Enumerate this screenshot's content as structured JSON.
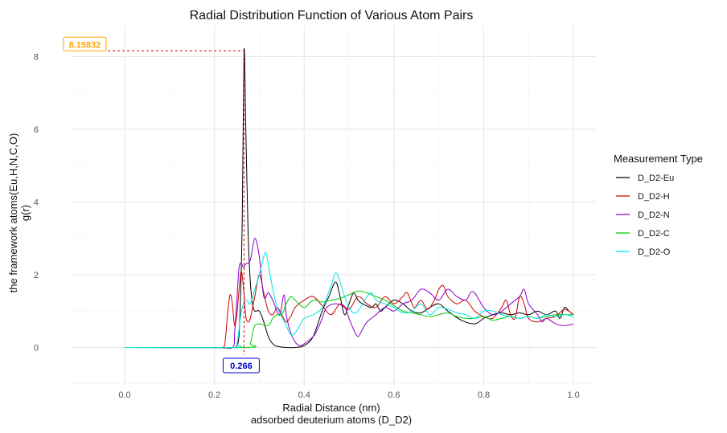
{
  "chart_data": {
    "type": "line",
    "title": "Radial Distribution Function of Various Atom Pairs",
    "xlabel_lines": [
      "Radial Distance (nm)",
      "adsorbed deuterium atoms (D_D2)"
    ],
    "ylabel_lines": [
      "the framework atoms(Eu,H,N,C,O)",
      "g(r)"
    ],
    "xlim": [
      -0.12,
      1.05
    ],
    "ylim": [
      -1.05,
      8.85
    ],
    "xticks": [
      0.0,
      0.2,
      0.4,
      0.6,
      0.8,
      1.0
    ],
    "xtick_labels": [
      "0.0",
      "0.2",
      "0.4",
      "0.6",
      "0.8",
      "1.0"
    ],
    "yticks": [
      0,
      2,
      4,
      6,
      8
    ],
    "ytick_labels": [
      "0",
      "2",
      "4",
      "6",
      "8"
    ],
    "grid": true,
    "legend": {
      "title": "Measurement Type",
      "position": "right"
    },
    "series": [
      {
        "name": "D_D2-Eu",
        "color": "#000000",
        "points": [
          [
            0.0,
            0
          ],
          [
            0.2,
            0
          ],
          [
            0.24,
            0
          ],
          [
            0.25,
            0.05
          ],
          [
            0.256,
            0.6
          ],
          [
            0.262,
            3.5
          ],
          [
            0.266,
            8.15832
          ],
          [
            0.27,
            6.0
          ],
          [
            0.275,
            3.2
          ],
          [
            0.28,
            1.8
          ],
          [
            0.285,
            1.2
          ],
          [
            0.29,
            1.0
          ],
          [
            0.3,
            1.0
          ],
          [
            0.31,
            0.7
          ],
          [
            0.32,
            0.3
          ],
          [
            0.33,
            0.1
          ],
          [
            0.34,
            0.03
          ],
          [
            0.36,
            0.0
          ],
          [
            0.38,
            0.0
          ],
          [
            0.4,
            0.05
          ],
          [
            0.42,
            0.3
          ],
          [
            0.44,
            1.0
          ],
          [
            0.455,
            1.4
          ],
          [
            0.47,
            1.8
          ],
          [
            0.48,
            1.4
          ],
          [
            0.49,
            0.9
          ],
          [
            0.5,
            1.2
          ],
          [
            0.51,
            1.5
          ],
          [
            0.52,
            1.3
          ],
          [
            0.53,
            1.2
          ],
          [
            0.55,
            1.1
          ],
          [
            0.56,
            1.2
          ],
          [
            0.57,
            1.0
          ],
          [
            0.58,
            1.1
          ],
          [
            0.6,
            1.3
          ],
          [
            0.62,
            1.2
          ],
          [
            0.64,
            1.0
          ],
          [
            0.66,
            0.95
          ],
          [
            0.68,
            1.1
          ],
          [
            0.7,
            1.2
          ],
          [
            0.72,
            1.0
          ],
          [
            0.75,
            0.75
          ],
          [
            0.78,
            0.65
          ],
          [
            0.8,
            0.8
          ],
          [
            0.82,
            0.9
          ],
          [
            0.84,
            0.95
          ],
          [
            0.86,
            0.9
          ],
          [
            0.88,
            0.95
          ],
          [
            0.9,
            0.9
          ],
          [
            0.92,
            1.0
          ],
          [
            0.94,
            0.9
          ],
          [
            0.96,
            1.0
          ],
          [
            0.97,
            0.8
          ],
          [
            0.98,
            1.1
          ],
          [
            0.99,
            1.0
          ],
          [
            1.0,
            0.9
          ]
        ]
      },
      {
        "name": "D_D2-H",
        "color": "#cc0000",
        "points": [
          [
            0.0,
            0
          ],
          [
            0.2,
            0
          ],
          [
            0.22,
            0
          ],
          [
            0.225,
            0.3
          ],
          [
            0.23,
            1.0
          ],
          [
            0.235,
            1.45
          ],
          [
            0.24,
            1.2
          ],
          [
            0.245,
            0.6
          ],
          [
            0.25,
            0.9
          ],
          [
            0.255,
            1.6
          ],
          [
            0.26,
            2.1
          ],
          [
            0.265,
            1.6
          ],
          [
            0.27,
            0.85
          ],
          [
            0.275,
            0.7
          ],
          [
            0.28,
            0.8
          ],
          [
            0.29,
            1.4
          ],
          [
            0.3,
            2.0
          ],
          [
            0.31,
            1.5
          ],
          [
            0.32,
            1.0
          ],
          [
            0.33,
            0.9
          ],
          [
            0.34,
            1.1
          ],
          [
            0.35,
            0.9
          ],
          [
            0.36,
            0.7
          ],
          [
            0.37,
            0.85
          ],
          [
            0.38,
            1.1
          ],
          [
            0.4,
            1.3
          ],
          [
            0.42,
            1.4
          ],
          [
            0.44,
            1.15
          ],
          [
            0.46,
            0.9
          ],
          [
            0.48,
            1.2
          ],
          [
            0.5,
            1.05
          ],
          [
            0.52,
            1.4
          ],
          [
            0.54,
            1.2
          ],
          [
            0.56,
            1.1
          ],
          [
            0.58,
            1.4
          ],
          [
            0.6,
            1.2
          ],
          [
            0.62,
            1.4
          ],
          [
            0.63,
            1.5
          ],
          [
            0.645,
            1.1
          ],
          [
            0.66,
            1.3
          ],
          [
            0.675,
            1.05
          ],
          [
            0.69,
            1.3
          ],
          [
            0.7,
            1.6
          ],
          [
            0.71,
            1.7
          ],
          [
            0.72,
            1.4
          ],
          [
            0.74,
            1.2
          ],
          [
            0.76,
            1.3
          ],
          [
            0.78,
            1.0
          ],
          [
            0.8,
            0.85
          ],
          [
            0.82,
            0.8
          ],
          [
            0.84,
            1.1
          ],
          [
            0.85,
            1.3
          ],
          [
            0.86,
            0.9
          ],
          [
            0.87,
            0.8
          ],
          [
            0.88,
            1.4
          ],
          [
            0.89,
            1.2
          ],
          [
            0.9,
            0.8
          ],
          [
            0.92,
            0.7
          ],
          [
            0.94,
            0.8
          ],
          [
            0.96,
            0.85
          ],
          [
            0.98,
            1.05
          ],
          [
            1.0,
            0.9
          ]
        ]
      },
      {
        "name": "D_D2-N",
        "color": "#8800cc",
        "points": [
          [
            0.0,
            0
          ],
          [
            0.2,
            0
          ],
          [
            0.24,
            0
          ],
          [
            0.245,
            0.4
          ],
          [
            0.25,
            1.3
          ],
          [
            0.255,
            2.2
          ],
          [
            0.26,
            2.3
          ],
          [
            0.265,
            2.2
          ],
          [
            0.27,
            2.3
          ],
          [
            0.28,
            2.4
          ],
          [
            0.29,
            3.0
          ],
          [
            0.3,
            2.5
          ],
          [
            0.31,
            1.4
          ],
          [
            0.32,
            1.5
          ],
          [
            0.33,
            1.3
          ],
          [
            0.345,
            0.9
          ],
          [
            0.355,
            1.45
          ],
          [
            0.36,
            0.9
          ],
          [
            0.37,
            0.4
          ],
          [
            0.38,
            0.15
          ],
          [
            0.39,
            0.05
          ],
          [
            0.4,
            0.1
          ],
          [
            0.42,
            0.3
          ],
          [
            0.43,
            0.5
          ],
          [
            0.44,
            0.8
          ],
          [
            0.45,
            1.1
          ],
          [
            0.47,
            1.2
          ],
          [
            0.49,
            1.1
          ],
          [
            0.5,
            0.8
          ],
          [
            0.51,
            0.5
          ],
          [
            0.52,
            0.3
          ],
          [
            0.53,
            0.5
          ],
          [
            0.54,
            0.7
          ],
          [
            0.56,
            0.9
          ],
          [
            0.58,
            1.1
          ],
          [
            0.6,
            1.0
          ],
          [
            0.62,
            1.2
          ],
          [
            0.64,
            1.3
          ],
          [
            0.66,
            1.6
          ],
          [
            0.68,
            1.5
          ],
          [
            0.7,
            1.3
          ],
          [
            0.72,
            1.6
          ],
          [
            0.74,
            1.4
          ],
          [
            0.76,
            1.3
          ],
          [
            0.77,
            1.5
          ],
          [
            0.78,
            1.5
          ],
          [
            0.8,
            1.1
          ],
          [
            0.82,
            0.9
          ],
          [
            0.84,
            1.0
          ],
          [
            0.86,
            1.2
          ],
          [
            0.88,
            1.4
          ],
          [
            0.89,
            1.6
          ],
          [
            0.9,
            1.2
          ],
          [
            0.92,
            0.9
          ],
          [
            0.93,
            0.7
          ],
          [
            0.94,
            0.8
          ],
          [
            0.96,
            0.65
          ],
          [
            0.98,
            0.6
          ],
          [
            1.0,
            0.65
          ]
        ]
      },
      {
        "name": "D_D2-C",
        "color": "#00cc00",
        "points": [
          [
            0.0,
            0
          ],
          [
            0.27,
            0
          ],
          [
            0.28,
            0.1
          ],
          [
            0.285,
            0.4
          ],
          [
            0.29,
            0.6
          ],
          [
            0.3,
            0.65
          ],
          [
            0.32,
            0.6
          ],
          [
            0.33,
            0.8
          ],
          [
            0.34,
            0.9
          ],
          [
            0.35,
            0.9
          ],
          [
            0.36,
            1.2
          ],
          [
            0.37,
            1.4
          ],
          [
            0.38,
            1.3
          ],
          [
            0.4,
            1.1
          ],
          [
            0.42,
            1.3
          ],
          [
            0.44,
            1.25
          ],
          [
            0.46,
            1.3
          ],
          [
            0.48,
            1.35
          ],
          [
            0.5,
            1.45
          ],
          [
            0.52,
            1.55
          ],
          [
            0.54,
            1.5
          ],
          [
            0.56,
            1.4
          ],
          [
            0.58,
            1.3
          ],
          [
            0.6,
            1.15
          ],
          [
            0.62,
            1.0
          ],
          [
            0.64,
            0.95
          ],
          [
            0.66,
            0.9
          ],
          [
            0.68,
            0.85
          ],
          [
            0.7,
            0.9
          ],
          [
            0.72,
            0.95
          ],
          [
            0.74,
            0.85
          ],
          [
            0.76,
            0.8
          ],
          [
            0.78,
            0.8
          ],
          [
            0.8,
            0.85
          ],
          [
            0.82,
            0.75
          ],
          [
            0.84,
            0.8
          ],
          [
            0.86,
            0.85
          ],
          [
            0.88,
            0.8
          ],
          [
            0.9,
            0.85
          ],
          [
            0.92,
            0.8
          ],
          [
            0.94,
            0.85
          ],
          [
            0.96,
            0.9
          ],
          [
            0.98,
            0.9
          ],
          [
            1.0,
            0.9
          ]
        ]
      },
      {
        "name": "D_D2-O",
        "color": "#00e5e5",
        "points": [
          [
            0.0,
            0
          ],
          [
            0.24,
            0
          ],
          [
            0.25,
            0.1
          ],
          [
            0.255,
            0.5
          ],
          [
            0.26,
            1.0
          ],
          [
            0.27,
            1.3
          ],
          [
            0.28,
            1.2
          ],
          [
            0.29,
            1.6
          ],
          [
            0.3,
            2.0
          ],
          [
            0.31,
            2.5
          ],
          [
            0.315,
            2.6
          ],
          [
            0.32,
            2.3
          ],
          [
            0.33,
            1.6
          ],
          [
            0.34,
            1.1
          ],
          [
            0.35,
            0.85
          ],
          [
            0.36,
            0.6
          ],
          [
            0.37,
            0.35
          ],
          [
            0.38,
            0.4
          ],
          [
            0.39,
            0.6
          ],
          [
            0.4,
            0.8
          ],
          [
            0.42,
            0.9
          ],
          [
            0.44,
            1.1
          ],
          [
            0.46,
            1.7
          ],
          [
            0.47,
            2.05
          ],
          [
            0.48,
            1.8
          ],
          [
            0.49,
            1.4
          ],
          [
            0.5,
            1.1
          ],
          [
            0.51,
            0.95
          ],
          [
            0.52,
            1.0
          ],
          [
            0.54,
            1.4
          ],
          [
            0.55,
            1.5
          ],
          [
            0.56,
            1.3
          ],
          [
            0.58,
            1.2
          ],
          [
            0.6,
            1.1
          ],
          [
            0.62,
            0.95
          ],
          [
            0.64,
            1.0
          ],
          [
            0.66,
            1.2
          ],
          [
            0.68,
            0.9
          ],
          [
            0.7,
            1.1
          ],
          [
            0.72,
            1.05
          ],
          [
            0.74,
            0.95
          ],
          [
            0.76,
            0.9
          ],
          [
            0.78,
            0.8
          ],
          [
            0.8,
            1.0
          ],
          [
            0.82,
            1.0
          ],
          [
            0.84,
            0.9
          ],
          [
            0.86,
            0.85
          ],
          [
            0.88,
            0.8
          ],
          [
            0.9,
            0.85
          ],
          [
            0.92,
            0.8
          ],
          [
            0.94,
            0.9
          ],
          [
            0.96,
            0.85
          ],
          [
            0.98,
            0.9
          ],
          [
            1.0,
            0.85
          ]
        ]
      }
    ],
    "annotations": {
      "peak_x": 0.266,
      "peak_y": 8.15832,
      "peak_x_label": "0.266",
      "peak_y_label": "8.15832",
      "x_label_color": "#0000cc",
      "y_label_color": "#ffa500",
      "line_color": "#cc0000"
    }
  }
}
